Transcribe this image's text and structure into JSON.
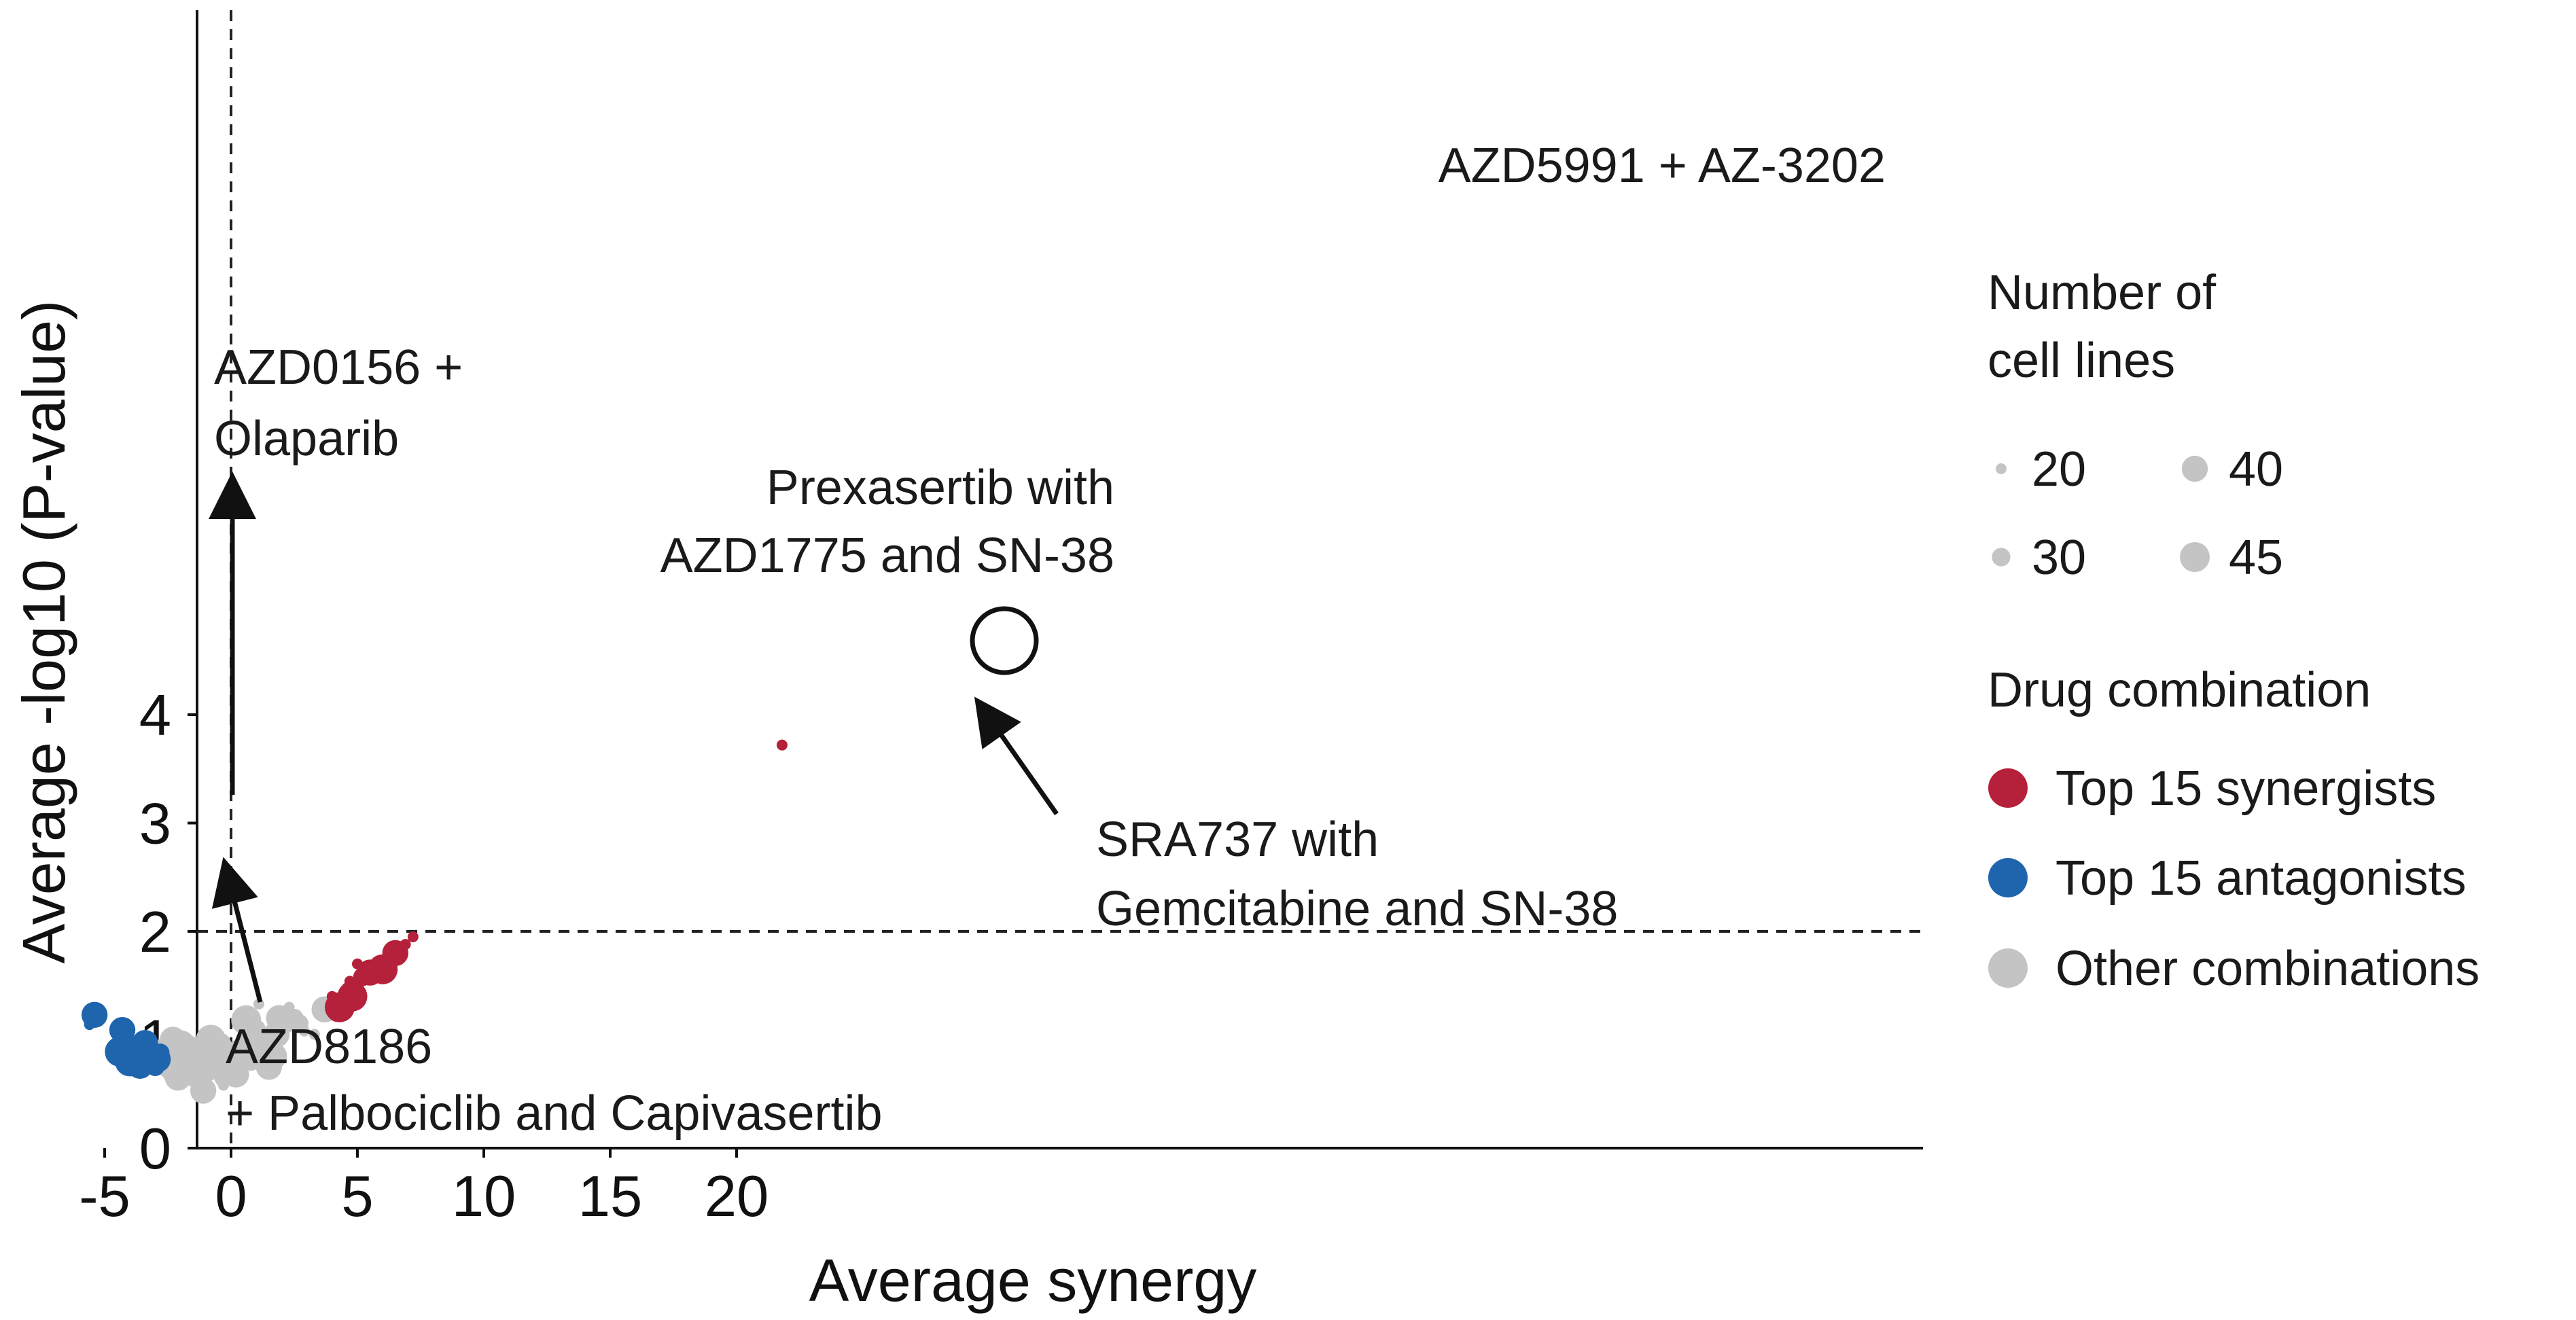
{
  "chart_data": {
    "type": "scatter",
    "xlabel": "Average synergy",
    "ylabel": "Average -log10 (P-value)",
    "xlim": [
      -6,
      22
    ],
    "ylim": [
      0,
      4.3
    ],
    "x_ticks": [
      -5,
      0,
      5,
      10,
      15,
      20
    ],
    "y_ticks": [
      0,
      1,
      2,
      3,
      4
    ],
    "x_tick_labels": [
      "-5",
      "0",
      "5",
      "10",
      "15",
      "20"
    ],
    "y_tick_labels": [
      "0",
      "1",
      "2",
      "3",
      "4"
    ],
    "reference_lines": {
      "vertical_x": 0,
      "horizontal_y": 2,
      "style": "dashed"
    },
    "colors": {
      "synergist": "#b5203a",
      "antagonist": "#1f65ad",
      "other": "#c4c4c4"
    },
    "series": [
      {
        "name": "Top 15 synergists",
        "points": [
          {
            "x": 21.8,
            "y": 3.72,
            "n": 20
          },
          {
            "x": 7.2,
            "y": 1.95,
            "n": 20
          },
          {
            "x": 6.9,
            "y": 1.88,
            "n": 20
          },
          {
            "x": 6.5,
            "y": 1.8,
            "n": 40
          },
          {
            "x": 6.0,
            "y": 1.65,
            "n": 45
          },
          {
            "x": 5.5,
            "y": 1.62,
            "n": 40
          },
          {
            "x": 5.0,
            "y": 1.7,
            "n": 20
          },
          {
            "x": 4.7,
            "y": 1.54,
            "n": 20
          },
          {
            "x": 4.8,
            "y": 1.4,
            "n": 45
          },
          {
            "x": 4.3,
            "y": 1.3,
            "n": 45
          },
          {
            "x": 4.5,
            "y": 1.35,
            "n": 30
          },
          {
            "x": 4.0,
            "y": 1.4,
            "n": 20
          },
          {
            "x": 4.2,
            "y": 1.25,
            "n": 30
          },
          {
            "x": 4.6,
            "y": 1.48,
            "n": 20
          },
          {
            "x": 5.2,
            "y": 1.58,
            "n": 30
          }
        ]
      },
      {
        "name": "Top 15 antagonists",
        "points": [
          {
            "x": -5.4,
            "y": 1.23,
            "n": 40
          },
          {
            "x": -5.6,
            "y": 1.14,
            "n": 20
          },
          {
            "x": -4.3,
            "y": 1.09,
            "n": 40
          },
          {
            "x": -4.4,
            "y": 0.89,
            "n": 45
          },
          {
            "x": -3.4,
            "y": 0.97,
            "n": 40
          },
          {
            "x": -3.7,
            "y": 0.9,
            "n": 45
          },
          {
            "x": -3.5,
            "y": 0.82,
            "n": 45
          },
          {
            "x": -3.2,
            "y": 0.86,
            "n": 40
          },
          {
            "x": -4.0,
            "y": 0.8,
            "n": 45
          },
          {
            "x": -2.9,
            "y": 0.82,
            "n": 40
          },
          {
            "x": -3.6,
            "y": 0.76,
            "n": 40
          },
          {
            "x": -3.0,
            "y": 0.75,
            "n": 30
          },
          {
            "x": -3.8,
            "y": 0.85,
            "n": 30
          },
          {
            "x": -3.3,
            "y": 0.92,
            "n": 30
          },
          {
            "x": -2.8,
            "y": 0.88,
            "n": 30
          }
        ]
      },
      {
        "name": "Other combinations",
        "points": [
          {
            "x": -2.3,
            "y": 1.0,
            "n": 40
          },
          {
            "x": -2.0,
            "y": 0.95,
            "n": 45
          },
          {
            "x": -1.7,
            "y": 0.92,
            "n": 40
          },
          {
            "x": -1.5,
            "y": 0.85,
            "n": 45
          },
          {
            "x": -1.2,
            "y": 0.9,
            "n": 40
          },
          {
            "x": -0.8,
            "y": 1.0,
            "n": 45
          },
          {
            "x": -0.5,
            "y": 0.95,
            "n": 40
          },
          {
            "x": -0.2,
            "y": 0.88,
            "n": 30
          },
          {
            "x": -1.0,
            "y": 0.75,
            "n": 45
          },
          {
            "x": -1.8,
            "y": 0.72,
            "n": 40
          },
          {
            "x": -2.4,
            "y": 0.78,
            "n": 45
          },
          {
            "x": -2.1,
            "y": 0.65,
            "n": 40
          },
          {
            "x": -1.4,
            "y": 0.68,
            "n": 40
          },
          {
            "x": -0.6,
            "y": 0.8,
            "n": 40
          },
          {
            "x": -1.1,
            "y": 0.53,
            "n": 40
          },
          {
            "x": -0.3,
            "y": 0.65,
            "n": 30
          },
          {
            "x": 0.2,
            "y": 0.68,
            "n": 40
          },
          {
            "x": -0.3,
            "y": 0.58,
            "n": 20
          },
          {
            "x": 0.3,
            "y": 0.88,
            "n": 40
          },
          {
            "x": 0.6,
            "y": 1.0,
            "n": 30
          },
          {
            "x": 0.6,
            "y": 1.18,
            "n": 45
          },
          {
            "x": 1.0,
            "y": 1.1,
            "n": 30
          },
          {
            "x": 1.0,
            "y": 0.95,
            "n": 40
          },
          {
            "x": 1.1,
            "y": 1.33,
            "n": 20
          },
          {
            "x": 1.3,
            "y": 0.9,
            "n": 40
          },
          {
            "x": 1.7,
            "y": 0.85,
            "n": 40
          },
          {
            "x": 1.5,
            "y": 1.0,
            "n": 30
          },
          {
            "x": 1.5,
            "y": 0.75,
            "n": 40
          },
          {
            "x": 1.8,
            "y": 1.05,
            "n": 40
          },
          {
            "x": 1.9,
            "y": 1.2,
            "n": 40
          },
          {
            "x": 2.2,
            "y": 1.15,
            "n": 30
          },
          {
            "x": 2.3,
            "y": 1.3,
            "n": 20
          },
          {
            "x": 2.5,
            "y": 1.2,
            "n": 30
          },
          {
            "x": 2.7,
            "y": 1.15,
            "n": 30
          },
          {
            "x": 2.9,
            "y": 1.08,
            "n": 20
          },
          {
            "x": 3.3,
            "y": 1.05,
            "n": 20
          },
          {
            "x": 3.7,
            "y": 1.28,
            "n": 40
          },
          {
            "x": -2.6,
            "y": 0.9,
            "n": 40
          },
          {
            "x": -1.9,
            "y": 0.85,
            "n": 45
          },
          {
            "x": -0.9,
            "y": 0.92,
            "n": 40
          },
          {
            "x": 0.0,
            "y": 0.78,
            "n": 30
          },
          {
            "x": -1.3,
            "y": 0.78,
            "n": 40
          },
          {
            "x": -2.2,
            "y": 0.7,
            "n": 40
          },
          {
            "x": 0.8,
            "y": 0.8,
            "n": 30
          },
          {
            "x": 1.2,
            "y": 0.82,
            "n": 30
          }
        ]
      }
    ],
    "size_legend": {
      "title_line1": "Number of",
      "title_line2": "cell lines",
      "items": [
        {
          "label": "20",
          "n": 20
        },
        {
          "label": "40",
          "n": 40
        },
        {
          "label": "30",
          "n": 30
        },
        {
          "label": "45",
          "n": 45
        }
      ]
    },
    "color_legend": {
      "title": "Drug combination",
      "items": [
        {
          "label": "Top 15 synergists",
          "key": "synergist"
        },
        {
          "label": "Top 15 antagonists",
          "key": "antagonist"
        },
        {
          "label": "Other combinations",
          "key": "other"
        }
      ]
    },
    "annotations": {
      "azd5991": "AZD5991 + AZ-3202",
      "azd0156_line1": "AZD0156 +",
      "azd0156_line2": "Olaparib",
      "prexasertib_line1": "Prexasertib with",
      "prexasertib_line2": "AZD1775 and SN-38",
      "sra737_line1": "SRA737 with",
      "sra737_line2": "Gemcitabine and SN-38",
      "azd8186_line1": "AZD8186",
      "azd8186_line2": "+ Palbociclib and Capivasertib"
    }
  }
}
